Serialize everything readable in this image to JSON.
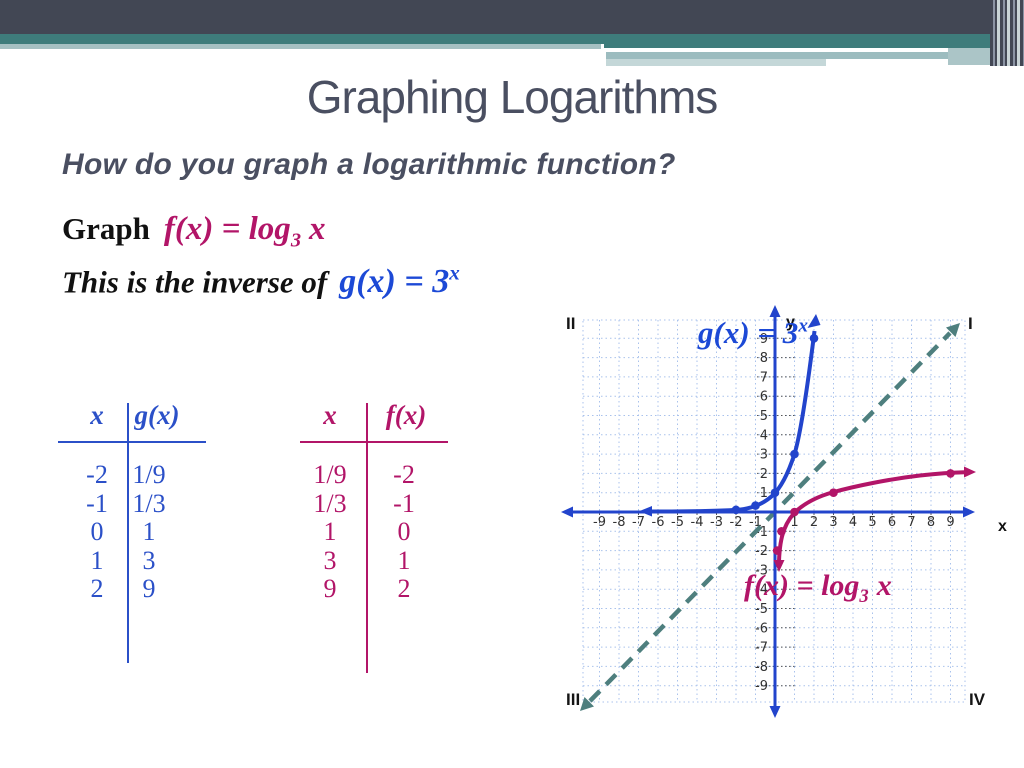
{
  "slide": {
    "title": "Graphing Logarithms",
    "question": "How do you graph a logarithmic function?",
    "graph_line": {
      "prefix": "Graph",
      "formula_main": "f(x) = log",
      "formula_sub": "3",
      "formula_tail": "x"
    },
    "inverse_line": {
      "prefix": "This is the inverse of",
      "formula_main": "g(x) = 3",
      "formula_sup": "x"
    }
  },
  "tables": [
    {
      "name": "g-table",
      "headers": [
        "x",
        "g(x)"
      ],
      "rows": [
        [
          "-2",
          "1/9"
        ],
        [
          "-1",
          "1/3"
        ],
        [
          "0",
          "1"
        ],
        [
          "1",
          "3"
        ],
        [
          "2",
          "9"
        ]
      ]
    },
    {
      "name": "f-table",
      "headers": [
        "x",
        "f(x)"
      ],
      "rows": [
        [
          "1/9",
          "-2"
        ],
        [
          "1/3",
          "-1"
        ],
        [
          "1",
          "0"
        ],
        [
          "3",
          "1"
        ],
        [
          "9",
          "2"
        ]
      ]
    }
  ],
  "chart_data": {
    "type": "line",
    "title": "",
    "x_range": [
      -9,
      9
    ],
    "y_range": [
      -9,
      9
    ],
    "grid": true,
    "x_ticks": [
      -9,
      -8,
      -7,
      -6,
      -5,
      -4,
      -3,
      -2,
      -1,
      1,
      2,
      3,
      4,
      5,
      6,
      7,
      8,
      9
    ],
    "y_ticks": [
      -9,
      -8,
      -7,
      -6,
      -5,
      -4,
      -3,
      -2,
      -1,
      1,
      2,
      3,
      4,
      5,
      6,
      7,
      8,
      9
    ],
    "axis_labels": {
      "x": "x",
      "y": "y"
    },
    "quadrant_labels": {
      "tl": "II",
      "tr": "I",
      "bl": "III",
      "br": "IV"
    },
    "series": [
      {
        "name": "g(x) = 3^x",
        "color": "#2244cc",
        "points": [
          [
            -2,
            0.111
          ],
          [
            -1,
            0.333
          ],
          [
            0,
            1
          ],
          [
            1,
            3
          ],
          [
            2,
            9
          ]
        ],
        "label_parts": {
          "main": "g(x) = 3",
          "sup": "x"
        }
      },
      {
        "name": "f(x) = log_3 x",
        "color": "#b21568",
        "points": [
          [
            0.111,
            -2
          ],
          [
            0.333,
            -1
          ],
          [
            1,
            0
          ],
          [
            3,
            1
          ],
          [
            9,
            2
          ]
        ],
        "label_parts": {
          "main": "f(x) = log",
          "sub": "3",
          "tail": "x"
        }
      },
      {
        "name": "y = x",
        "color": "#4e7f7e",
        "style": "dashed",
        "points": [
          [
            -9.5,
            -9.5
          ],
          [
            9.3,
            9.3
          ]
        ]
      }
    ]
  },
  "colors": {
    "slate_bar": "#424754",
    "teal_bar": "#3e7c7b",
    "light_teal": "#a5c0c2",
    "band_a": "#9cbcbf",
    "band_b": "#c4d7d8",
    "title_text": "#4a4f61",
    "formula_magenta": "#b21568",
    "formula_blue": "#1c49d6",
    "axis_blue": "#2244cc",
    "dash_teal": "#4e7f7e",
    "grid_blue": "#a9c2ec"
  }
}
